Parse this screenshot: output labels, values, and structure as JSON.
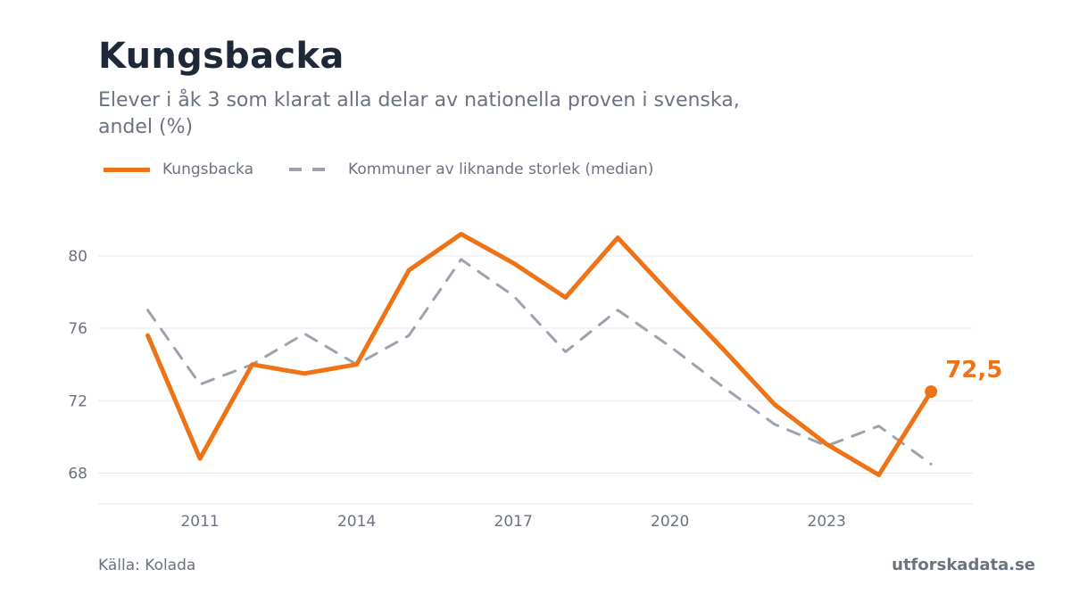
{
  "title": "Kungsbacka",
  "subtitle": "Elever i åk 3 som klarat alla delar av nationella proven i svenska, andel (%)",
  "legend": {
    "series_1": "Kungsbacka",
    "series_2": "Kommuner av liknande storlek (median)"
  },
  "source": "Källa: Kolada",
  "brand": "utforskadata.se",
  "colors": {
    "primary": "#ed7316",
    "comparison": "#9ca3af",
    "grid": "#e5e7eb",
    "text": "#6b7280"
  },
  "chart_data": {
    "type": "line",
    "x": [
      2010,
      2011,
      2012,
      2013,
      2014,
      2015,
      2016,
      2017,
      2018,
      2019,
      2020,
      2021,
      2022,
      2023,
      2024,
      2025
    ],
    "series": [
      {
        "name": "Kungsbacka",
        "values": [
          75.6,
          68.8,
          74.0,
          73.5,
          74.0,
          79.2,
          81.2,
          79.6,
          77.7,
          81.0,
          77.9,
          74.9,
          71.8,
          69.6,
          67.9,
          72.5
        ]
      },
      {
        "name": "Kommuner av liknande storlek (median)",
        "values": [
          77.0,
          72.9,
          74.0,
          75.7,
          74.0,
          75.6,
          79.8,
          77.8,
          74.7,
          77.0,
          75.0,
          72.8,
          70.7,
          69.5,
          70.6,
          68.5
        ]
      }
    ],
    "xticks": [
      "2011",
      "2014",
      "2017",
      "2020",
      "2023"
    ],
    "yticks": [
      "68",
      "72",
      "76",
      "80"
    ],
    "end_label": "72,5",
    "xlim": [
      2009.05,
      2025.8
    ],
    "ylim": [
      66.3,
      82.8
    ],
    "grid": true,
    "legend_position": "top-left"
  }
}
